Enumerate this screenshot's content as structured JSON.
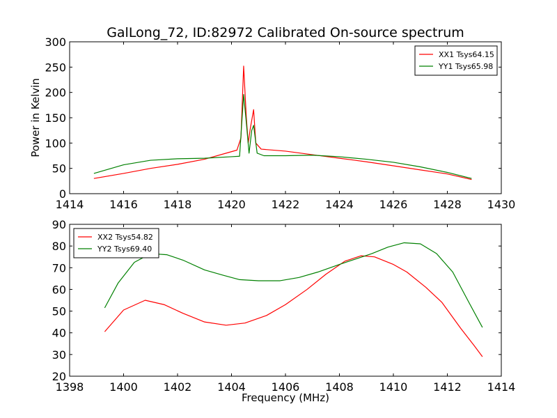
{
  "colors": {
    "XX": "#ff0000",
    "YY": "#008000",
    "axes": "#000000",
    "background": "#ffffff"
  },
  "chart_data": [
    {
      "type": "line",
      "title": "GalLong_72, ID:82972 Calibrated On-source spectrum",
      "xlabel": "",
      "ylabel": "Power in Kelvin",
      "xlim": [
        1414,
        1430
      ],
      "ylim": [
        0,
        300
      ],
      "xticks": [
        1414,
        1416,
        1418,
        1420,
        1422,
        1424,
        1426,
        1428,
        1430
      ],
      "yticks": [
        0,
        50,
        100,
        150,
        200,
        250,
        300
      ],
      "legend": "top-right",
      "grid": false,
      "series": [
        {
          "name": "XX1 Tsys64.15",
          "color": "#ff0000",
          "points": [
            [
              1414.9,
              30
            ],
            [
              1416,
              40
            ],
            [
              1417,
              50
            ],
            [
              1418,
              58
            ],
            [
              1419,
              68
            ],
            [
              1419.8,
              80
            ],
            [
              1420.2,
              86
            ],
            [
              1420.35,
              110
            ],
            [
              1420.45,
              252
            ],
            [
              1420.55,
              150
            ],
            [
              1420.62,
              100
            ],
            [
              1420.7,
              130
            ],
            [
              1420.82,
              166
            ],
            [
              1420.9,
              100
            ],
            [
              1421.1,
              88
            ],
            [
              1422,
              84
            ],
            [
              1423,
              77
            ],
            [
              1424,
              70
            ],
            [
              1425,
              63
            ],
            [
              1426,
              55
            ],
            [
              1427,
              47
            ],
            [
              1428,
              39
            ],
            [
              1428.9,
              28
            ]
          ]
        },
        {
          "name": "YY1 Tsys65.98",
          "color": "#008000",
          "points": [
            [
              1414.9,
              40
            ],
            [
              1416,
              57
            ],
            [
              1417,
              66
            ],
            [
              1418,
              69
            ],
            [
              1419,
              70
            ],
            [
              1420,
              73
            ],
            [
              1420.3,
              74
            ],
            [
              1420.45,
              196
            ],
            [
              1420.55,
              140
            ],
            [
              1420.65,
              80
            ],
            [
              1420.75,
              125
            ],
            [
              1420.82,
              135
            ],
            [
              1420.95,
              80
            ],
            [
              1421.2,
              75
            ],
            [
              1422,
              75
            ],
            [
              1423,
              76
            ],
            [
              1424,
              73
            ],
            [
              1425,
              68
            ],
            [
              1426,
              62
            ],
            [
              1427,
              53
            ],
            [
              1428,
              42
            ],
            [
              1428.9,
              30
            ]
          ]
        }
      ]
    },
    {
      "type": "line",
      "title": "",
      "xlabel": "Frequency (MHz)",
      "ylabel": "",
      "xlim": [
        1398,
        1414
      ],
      "ylim": [
        20,
        90
      ],
      "xticks": [
        1398,
        1400,
        1402,
        1404,
        1406,
        1408,
        1410,
        1412,
        1414
      ],
      "yticks": [
        20,
        30,
        40,
        50,
        60,
        70,
        80,
        90
      ],
      "legend": "top-left",
      "grid": false,
      "series": [
        {
          "name": "XX2 Tsys54.82",
          "color": "#ff0000",
          "points": [
            [
              1399.3,
              40.5
            ],
            [
              1400,
              50.5
            ],
            [
              1400.8,
              55
            ],
            [
              1401.5,
              53
            ],
            [
              1402.2,
              49
            ],
            [
              1403,
              45
            ],
            [
              1403.8,
              43.5
            ],
            [
              1404.5,
              44.5
            ],
            [
              1405.3,
              48
            ],
            [
              1406,
              53
            ],
            [
              1406.8,
              60
            ],
            [
              1407.5,
              67
            ],
            [
              1408.2,
              73
            ],
            [
              1408.8,
              75.5
            ],
            [
              1409.3,
              75
            ],
            [
              1410,
              71.5
            ],
            [
              1410.5,
              68
            ],
            [
              1411.2,
              61
            ],
            [
              1411.8,
              54
            ],
            [
              1412.5,
              42
            ],
            [
              1413,
              34
            ],
            [
              1413.3,
              29
            ]
          ]
        },
        {
          "name": "YY2 Tsys69.40",
          "color": "#008000",
          "points": [
            [
              1399.3,
              51.5
            ],
            [
              1399.8,
              63
            ],
            [
              1400.4,
              72.5
            ],
            [
              1401,
              76.5
            ],
            [
              1401.6,
              76
            ],
            [
              1402.2,
              73.5
            ],
            [
              1403,
              69
            ],
            [
              1403.7,
              66.5
            ],
            [
              1404.3,
              64.5
            ],
            [
              1405,
              64
            ],
            [
              1405.8,
              64
            ],
            [
              1406.5,
              65.5
            ],
            [
              1407.2,
              68
            ],
            [
              1408,
              71.5
            ],
            [
              1408.6,
              74
            ],
            [
              1409.2,
              76.5
            ],
            [
              1409.8,
              79.5
            ],
            [
              1410.4,
              81.5
            ],
            [
              1411,
              81
            ],
            [
              1411.6,
              76.5
            ],
            [
              1412.2,
              68
            ],
            [
              1412.8,
              54
            ],
            [
              1413.3,
              42.5
            ]
          ]
        }
      ]
    }
  ]
}
